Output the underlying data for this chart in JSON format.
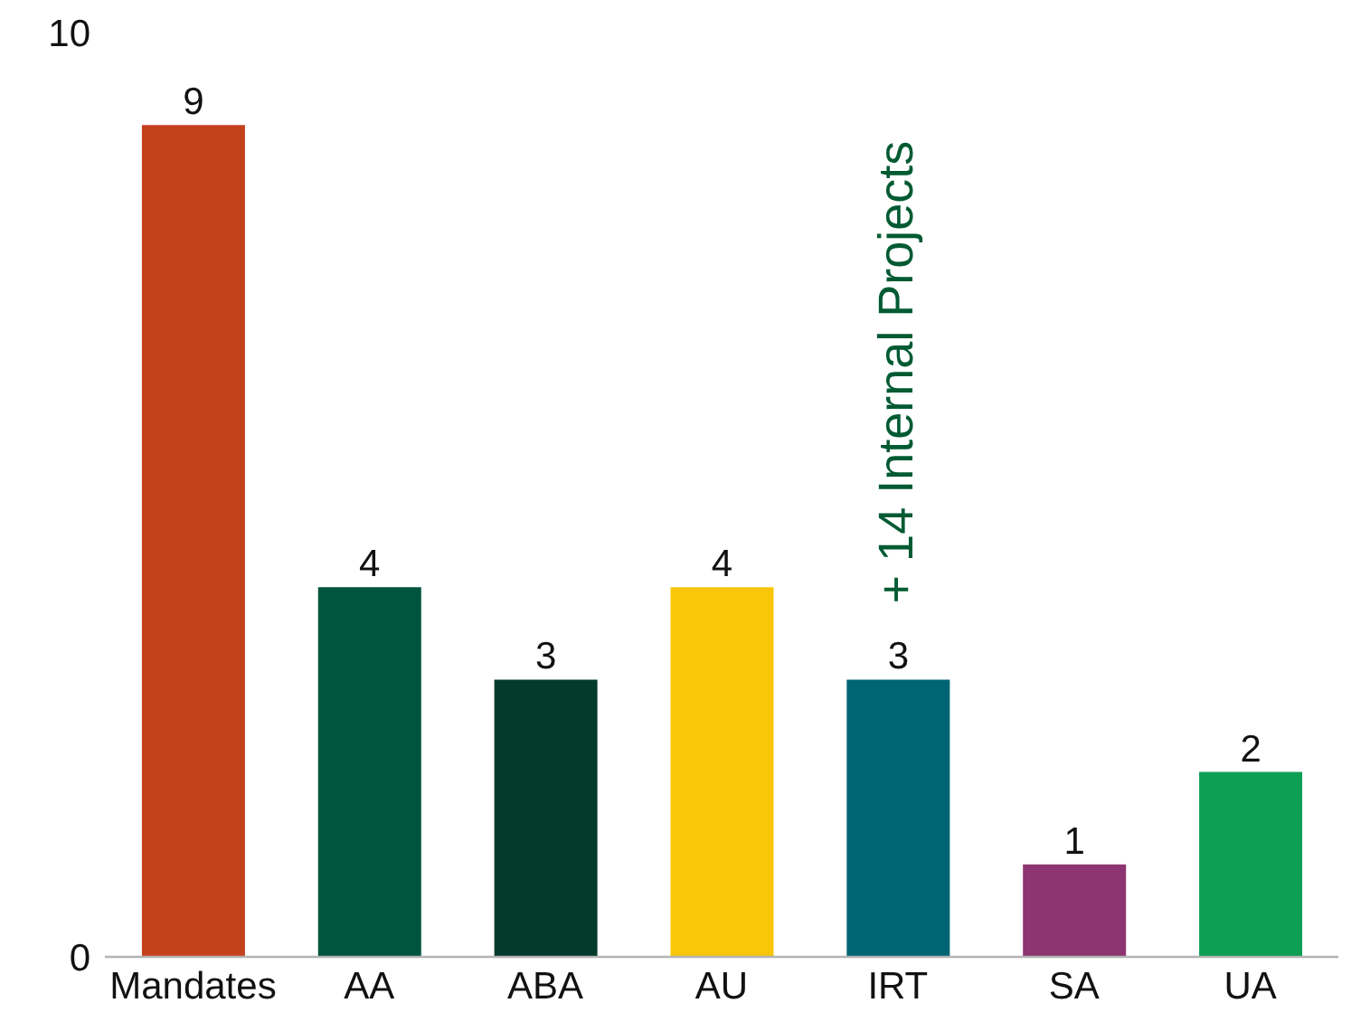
{
  "chart_data": {
    "type": "bar",
    "categories": [
      "Mandates",
      "AA",
      "ABA",
      "AU",
      "IRT",
      "SA",
      "UA"
    ],
    "values": [
      9,
      4,
      3,
      4,
      3,
      1,
      2
    ],
    "colors": [
      "#c5411e",
      "#00553f",
      "#043a2b",
      "#f9c608",
      "#006573",
      "#8d3570",
      "#0e9f55"
    ],
    "ylim": [
      0,
      10
    ],
    "yticks": [
      0,
      10
    ],
    "grid": false,
    "data_labels": true,
    "legend": false,
    "annotations": [
      {
        "text": "+ 14 Internal Projects",
        "x": "IRT",
        "y": 3
      }
    ]
  }
}
